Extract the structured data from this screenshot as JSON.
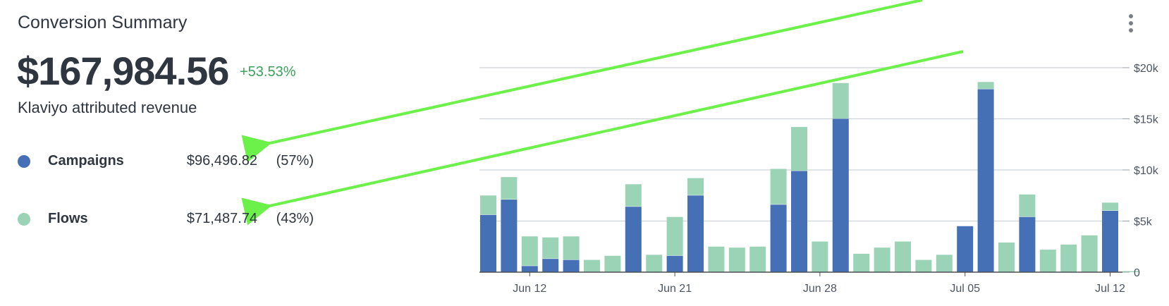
{
  "header": {
    "title": "Conversion Summary",
    "menu_icon": "kebab-menu-icon"
  },
  "summary": {
    "total": "$167,984.56",
    "change": "+53.53%",
    "label": "Klaviyo attributed revenue"
  },
  "legend": [
    {
      "name": "Campaigns",
      "amount": "$96,496.82",
      "percent": "(57%)",
      "color": "#4570b5"
    },
    {
      "name": "Flows",
      "amount": "$71,487.74",
      "percent": "(43%)",
      "color": "#9bd3b6"
    }
  ],
  "colors": {
    "campaigns": "#4570b5",
    "flows": "#9bd3b6",
    "positive_change": "#3aa35a",
    "annotation_arrow": "#6cf04a"
  },
  "chart_data": {
    "type": "bar",
    "stacked": true,
    "ylim": [
      0,
      20000
    ],
    "ytick_values": [
      0,
      5000,
      10000,
      15000,
      20000
    ],
    "ytick_labels": [
      "0",
      "$5k",
      "$10k",
      "$15k",
      "$20k"
    ],
    "y_axis_position": "right",
    "grid": true,
    "x_tick_labels": [
      {
        "label": "Jun 12",
        "at_index": 2
      },
      {
        "label": "Jun 21",
        "at_index": 9
      },
      {
        "label": "Jun 28",
        "at_index": 16
      },
      {
        "label": "Jul 05",
        "at_index": 23
      },
      {
        "label": "Jul 12",
        "at_index": 30
      }
    ],
    "series": [
      {
        "name": "Campaigns",
        "color": "#4570b5",
        "values": [
          5600,
          7100,
          600,
          1300,
          1200,
          0,
          0,
          6400,
          0,
          1600,
          7500,
          0,
          0,
          0,
          6600,
          9900,
          0,
          15000,
          0,
          0,
          0,
          0,
          0,
          4500,
          17900,
          0,
          5400,
          0,
          0,
          0,
          6000,
          0
        ]
      },
      {
        "name": "Flows",
        "color": "#9bd3b6",
        "values": [
          1900,
          2200,
          2900,
          2100,
          2300,
          1200,
          1600,
          2200,
          1700,
          3800,
          1700,
          2500,
          2400,
          2500,
          3500,
          4300,
          3000,
          3500,
          1800,
          2400,
          3000,
          1200,
          1700,
          0,
          700,
          2900,
          2200,
          2200,
          2700,
          3600,
          800,
          100
        ]
      }
    ],
    "annotations": [
      {
        "type": "arrow",
        "points_to": "Campaigns"
      },
      {
        "type": "arrow",
        "points_to": "Flows"
      }
    ]
  }
}
